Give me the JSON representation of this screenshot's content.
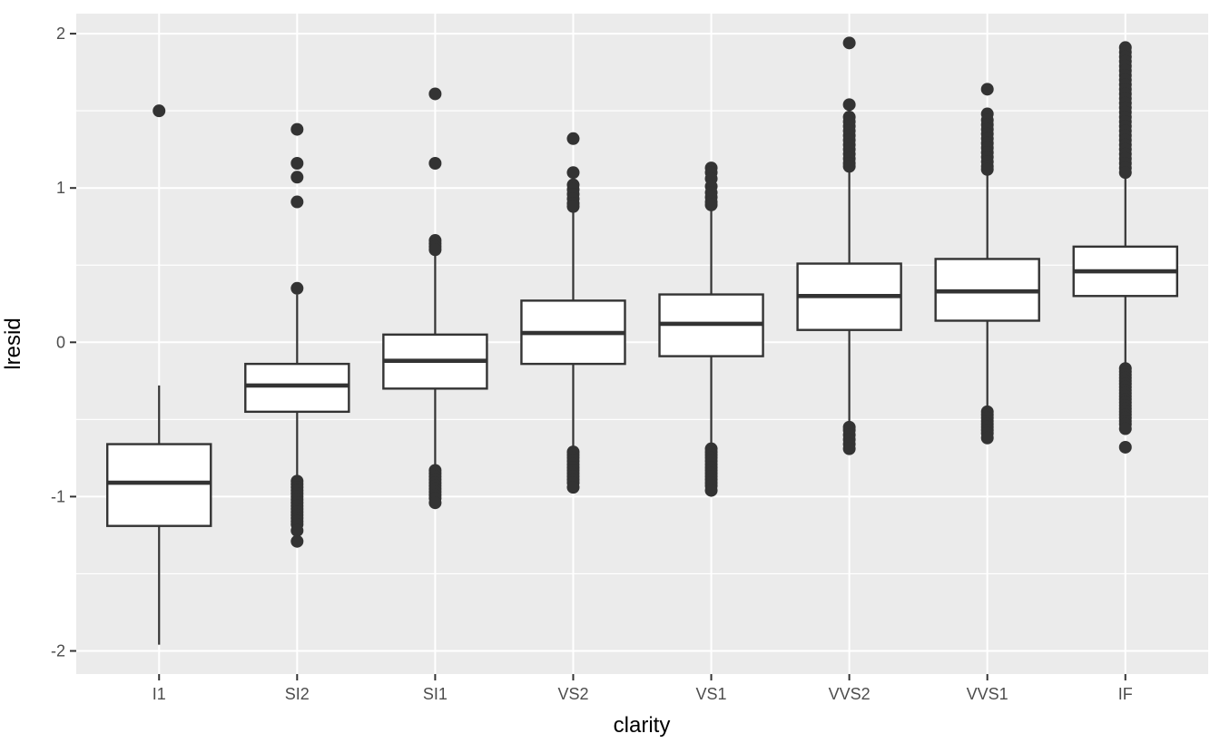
{
  "chart_data": {
    "type": "boxplot",
    "title": "",
    "xlabel": "clarity",
    "ylabel": "lresid",
    "categories": [
      "I1",
      "SI2",
      "SI1",
      "VS2",
      "VS1",
      "VVS2",
      "VVS1",
      "IF"
    ],
    "y_major_ticks": [
      -2,
      -1,
      0,
      1,
      2
    ],
    "y_minor_ticks": [
      -1.5,
      -0.5,
      0.5,
      1.5
    ],
    "ylim": [
      -2.15,
      2.13
    ],
    "grid": true,
    "legend": "none",
    "boxes": [
      {
        "category": "I1",
        "whisker_low": -1.96,
        "q1": -1.19,
        "median": -0.91,
        "q3": -0.66,
        "whisker_high": -0.28,
        "outliers": [
          1.5
        ]
      },
      {
        "category": "SI2",
        "whisker_low": -0.9,
        "q1": -0.45,
        "median": -0.28,
        "q3": -0.14,
        "whisker_high": 0.31,
        "outliers": [
          1.38,
          1.16,
          1.07,
          0.91,
          0.35,
          -0.9,
          -0.92,
          -0.94,
          -0.96,
          -0.98,
          -1.0,
          -1.02,
          -1.04,
          -1.06,
          -1.08,
          -1.1,
          -1.12,
          -1.14,
          -1.16,
          -1.18,
          -1.22,
          -1.29
        ]
      },
      {
        "category": "SI1",
        "whisker_low": -0.81,
        "q1": -0.3,
        "median": -0.12,
        "q3": 0.05,
        "whisker_high": 0.57,
        "outliers": [
          1.61,
          1.16,
          0.66,
          0.64,
          0.62,
          0.6,
          -0.83,
          -0.85,
          -0.87,
          -0.89,
          -0.91,
          -0.93,
          -0.95,
          -0.97,
          -0.99,
          -1.01,
          -1.04
        ]
      },
      {
        "category": "VS2",
        "whisker_low": -0.71,
        "q1": -0.14,
        "median": 0.06,
        "q3": 0.27,
        "whisker_high": 0.86,
        "outliers": [
          1.32,
          1.1,
          1.02,
          0.99,
          0.96,
          0.93,
          0.9,
          0.88,
          -0.71,
          -0.73,
          -0.75,
          -0.77,
          -0.79,
          -0.81,
          -0.83,
          -0.85,
          -0.87,
          -0.89,
          -0.91,
          -0.94
        ]
      },
      {
        "category": "VS1",
        "whisker_low": -0.68,
        "q1": -0.09,
        "median": 0.12,
        "q3": 0.31,
        "whisker_high": 0.88,
        "outliers": [
          1.13,
          1.1,
          1.06,
          1.01,
          0.97,
          0.94,
          0.91,
          0.89,
          -0.69,
          -0.71,
          -0.73,
          -0.75,
          -0.77,
          -0.79,
          -0.81,
          -0.83,
          -0.85,
          -0.87,
          -0.89,
          -0.91,
          -0.93,
          -0.96
        ]
      },
      {
        "category": "VVS2",
        "whisker_low": -0.54,
        "q1": 0.08,
        "median": 0.3,
        "q3": 0.51,
        "whisker_high": 1.12,
        "outliers": [
          1.94,
          1.54,
          1.46,
          1.43,
          1.4,
          1.37,
          1.34,
          1.31,
          1.28,
          1.25,
          1.22,
          1.19,
          1.16,
          1.14,
          -0.55,
          -0.57,
          -0.6,
          -0.63,
          -0.66,
          -0.69
        ]
      },
      {
        "category": "VVS1",
        "whisker_low": -0.44,
        "q1": 0.14,
        "median": 0.33,
        "q3": 0.54,
        "whisker_high": 1.1,
        "outliers": [
          1.64,
          1.48,
          1.44,
          1.41,
          1.38,
          1.35,
          1.32,
          1.29,
          1.26,
          1.23,
          1.2,
          1.17,
          1.14,
          1.12,
          -0.45,
          -0.47,
          -0.49,
          -0.51,
          -0.53,
          -0.55,
          -0.57,
          -0.59,
          -0.62
        ]
      },
      {
        "category": "IF",
        "whisker_low": -0.15,
        "q1": 0.3,
        "median": 0.46,
        "q3": 0.62,
        "whisker_high": 1.07,
        "outliers": [
          1.91,
          1.88,
          1.85,
          1.82,
          1.79,
          1.76,
          1.73,
          1.7,
          1.67,
          1.64,
          1.61,
          1.58,
          1.55,
          1.52,
          1.49,
          1.46,
          1.43,
          1.4,
          1.37,
          1.34,
          1.31,
          1.28,
          1.25,
          1.22,
          1.19,
          1.16,
          1.13,
          1.1,
          -0.17,
          -0.19,
          -0.21,
          -0.23,
          -0.25,
          -0.27,
          -0.29,
          -0.31,
          -0.33,
          -0.35,
          -0.37,
          -0.39,
          -0.41,
          -0.43,
          -0.45,
          -0.47,
          -0.49,
          -0.51,
          -0.53,
          -0.56,
          -0.68
        ]
      }
    ],
    "colors": {
      "canvas_bg": "#FFFFFF",
      "panel_bg": "#EBEBEB",
      "grid": "#FFFFFF",
      "box_stroke": "#333333",
      "box_fill": "#FFFFFF",
      "outlier": "#333333",
      "tick_mark": "#333333",
      "tick_label": "#4D4D4D",
      "axis_title": "#000000"
    }
  }
}
